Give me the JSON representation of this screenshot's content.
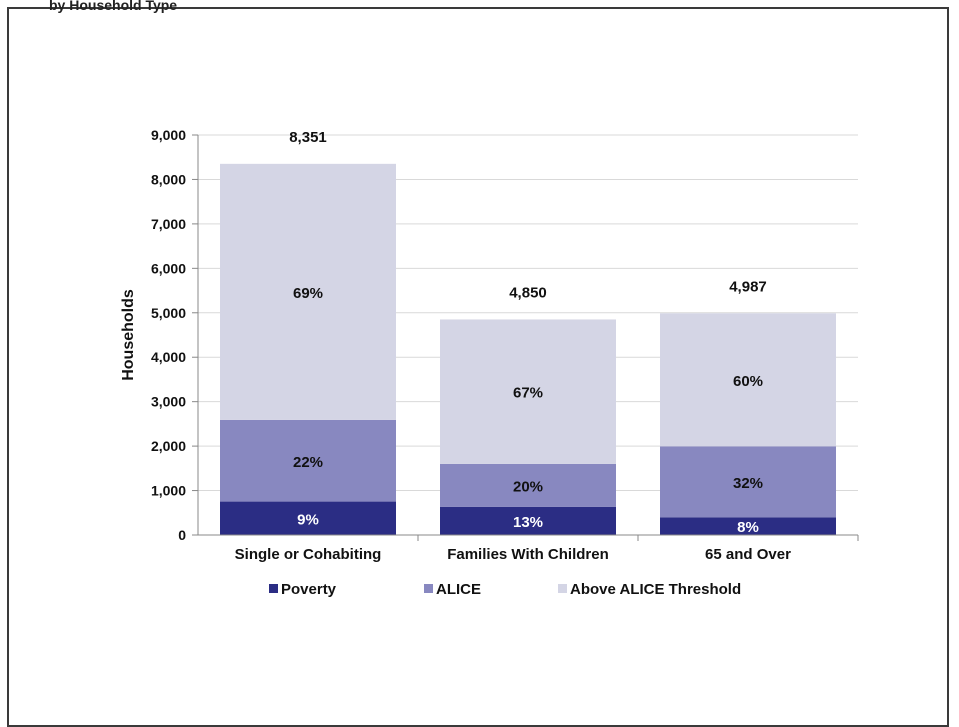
{
  "header": {
    "partial_text": "by Household Type"
  },
  "chart_data": {
    "type": "bar",
    "stacked": true,
    "title": "",
    "xlabel": "",
    "ylabel": "Households",
    "ylim": [
      0,
      9000
    ],
    "yticks": [
      0,
      1000,
      2000,
      3000,
      4000,
      5000,
      6000,
      7000,
      8000,
      9000
    ],
    "ytick_labels": [
      "0",
      "1,000",
      "2,000",
      "3,000",
      "4,000",
      "5,000",
      "6,000",
      "7,000",
      "8,000",
      "9,000"
    ],
    "categories": [
      "Single or Cohabiting",
      "Families With Children",
      "65 and Over"
    ],
    "totals": [
      8351,
      4850,
      4987
    ],
    "total_labels": [
      "8,351",
      "4,850",
      "4,987"
    ],
    "grid": true,
    "legend_position": "bottom",
    "series": [
      {
        "name": "Poverty",
        "color": "#2b2d84",
        "label_color": "#ffffff",
        "values": [
          752,
          631,
          399
        ],
        "labels": [
          "9%",
          "13%",
          "8%"
        ]
      },
      {
        "name": "ALICE",
        "color": "#8888c0",
        "label_color": "#111111",
        "values": [
          1837,
          970,
          1596
        ],
        "labels": [
          "22%",
          "20%",
          "32%"
        ]
      },
      {
        "name": "Above ALICE Threshold",
        "color": "#d4d5e5",
        "label_color": "#111111",
        "values": [
          5762,
          3249,
          2992
        ],
        "labels": [
          "69%",
          "67%",
          "60%"
        ]
      }
    ]
  }
}
